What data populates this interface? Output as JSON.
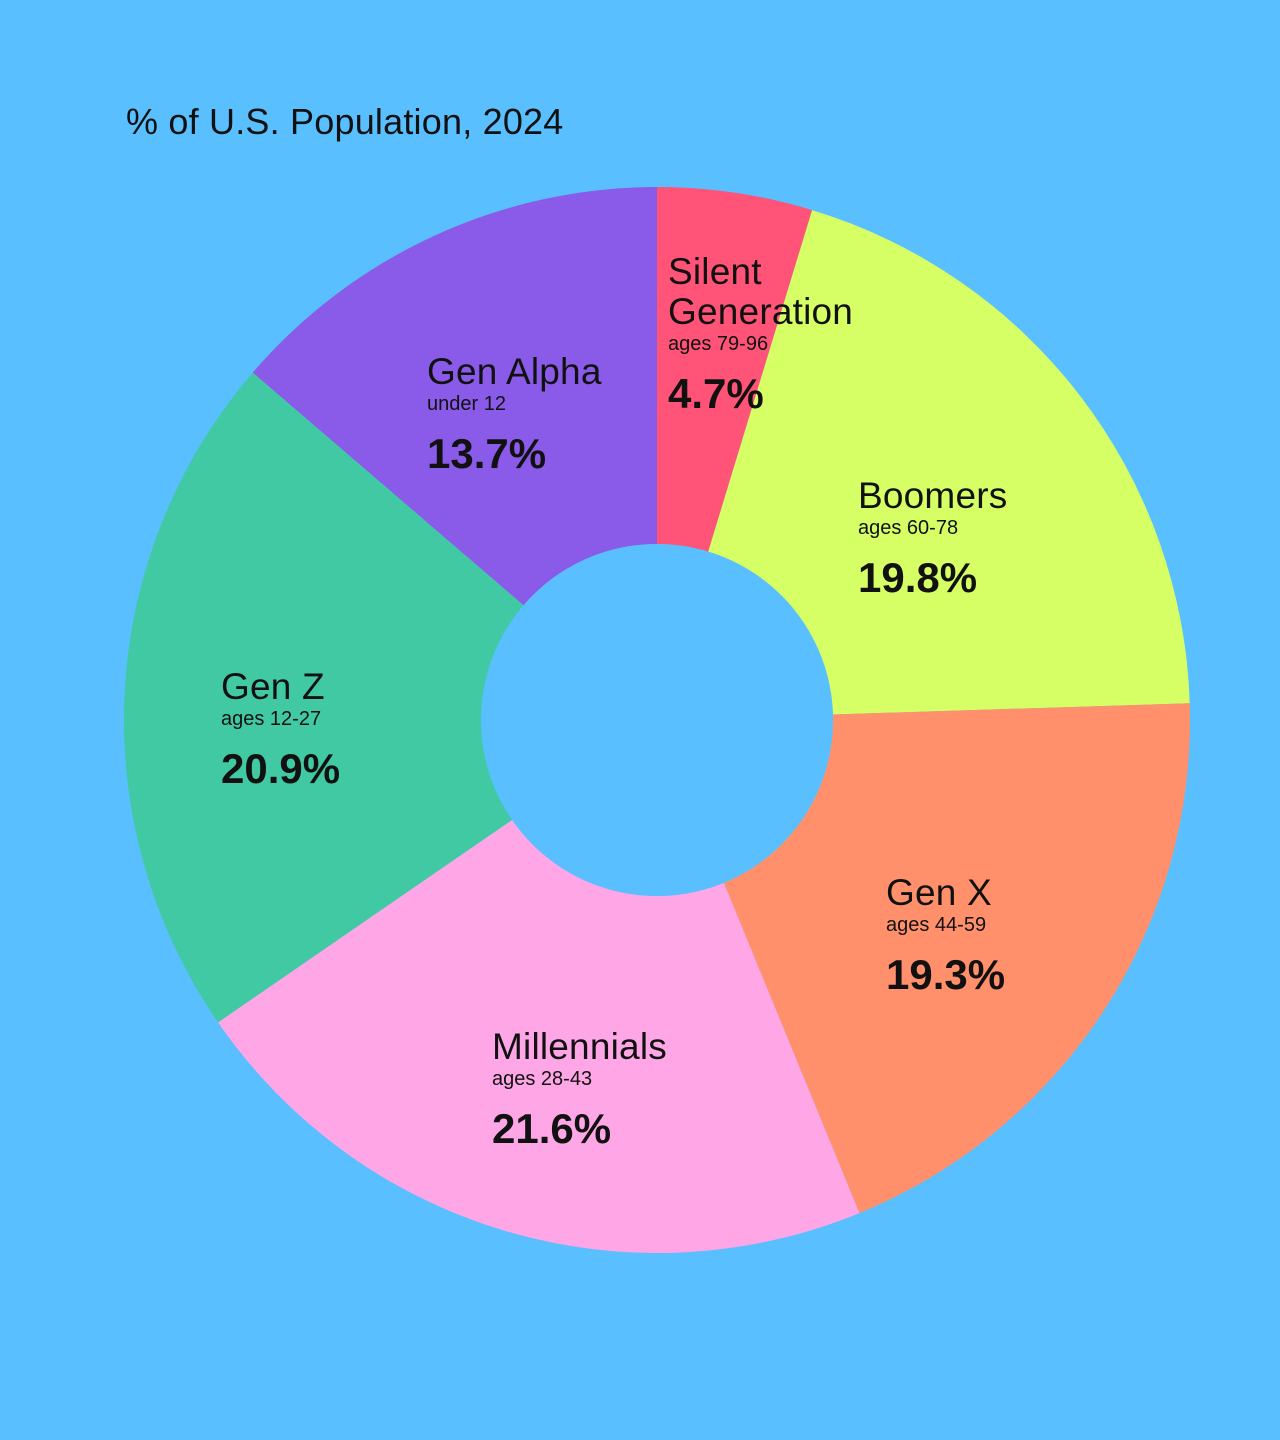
{
  "chart_data": {
    "type": "pie",
    "title": "% of U.S. Population, 2024",
    "slices": [
      {
        "name": "Silent Generation",
        "name_lines": [
          "Silent",
          "Generation"
        ],
        "sub": "ages 79-96",
        "value": 4.7,
        "value_label": "4.7%",
        "color": "#ff5378"
      },
      {
        "name": "Boomers",
        "name_lines": [
          "Boomers"
        ],
        "sub": "ages 60-78",
        "value": 19.8,
        "value_label": "19.8%",
        "color": "#d6ff66"
      },
      {
        "name": "Gen X",
        "name_lines": [
          "Gen X"
        ],
        "sub": "ages 44-59",
        "value": 19.3,
        "value_label": "19.3%",
        "color": "#ff906b"
      },
      {
        "name": "Millennials",
        "name_lines": [
          "Millennials"
        ],
        "sub": "ages 28-43",
        "value": 21.6,
        "value_label": "21.6%",
        "color": "#ffa6e6"
      },
      {
        "name": "Gen Z",
        "name_lines": [
          "Gen Z"
        ],
        "sub": "ages 12-27",
        "value": 20.9,
        "value_label": "20.9%",
        "color": "#40c9a2"
      },
      {
        "name": "Gen Alpha",
        "name_lines": [
          "Gen Alpha"
        ],
        "sub": "under 12",
        "value": 13.7,
        "value_label": "13.7%",
        "color": "#8a5ae8"
      }
    ]
  }
}
